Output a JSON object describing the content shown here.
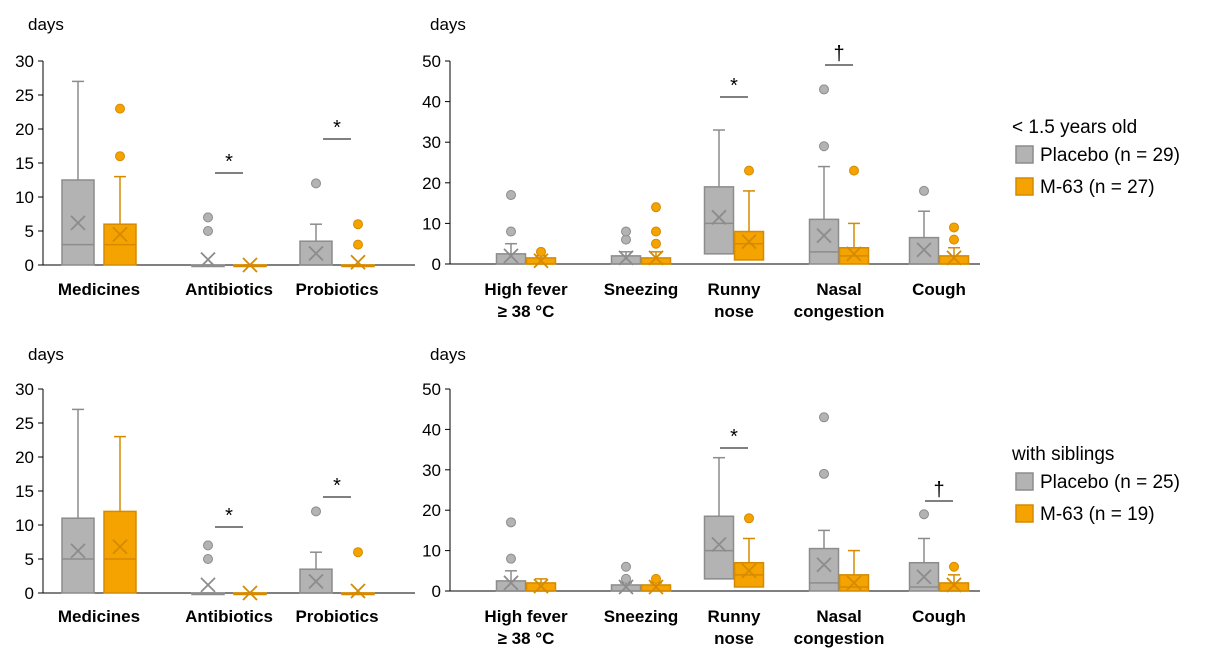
{
  "colors": {
    "placebo_fill": "#b3b3b3",
    "placebo_edge": "#8c8c8c",
    "m63_fill": "#f5a300",
    "m63_edge": "#d58a00",
    "axis": "#000000"
  },
  "legends": [
    {
      "title": "< 1.5 years old",
      "items": [
        "Placebo (n = 29)",
        "M-63 (n = 27)"
      ]
    },
    {
      "title": "with siblings",
      "items": [
        "Placebo (n = 25)",
        "M-63 (n = 19)"
      ]
    }
  ],
  "chart_data": [
    {
      "type": "box",
      "panel": "top-left",
      "ylabel": "days",
      "ylim": [
        0,
        30
      ],
      "yticks": [
        0,
        5,
        10,
        15,
        20,
        25,
        30
      ],
      "series_names": [
        "Placebo (n = 29)",
        "M-63 (n = 27)"
      ],
      "categories": [
        {
          "label": [
            "Medicines"
          ],
          "sig": "",
          "placebo": {
            "min": 0,
            "q1": 0,
            "median": 3,
            "q3": 12.5,
            "max": 27,
            "mean": 6.2,
            "outliers": []
          },
          "m63": {
            "min": 0,
            "q1": 0,
            "median": 3,
            "q3": 6,
            "max": 13,
            "mean": 4.5,
            "outliers": [
              16,
              23
            ]
          }
        },
        {
          "label": [
            "Antibiotics"
          ],
          "sig": "*",
          "placebo": {
            "min": 0,
            "q1": 0,
            "median": 0,
            "q3": 0,
            "max": 0,
            "mean": 0.8,
            "outliers": [
              5,
              7
            ]
          },
          "m63": {
            "min": 0,
            "q1": 0,
            "median": 0,
            "q3": 0,
            "max": 0,
            "mean": 0,
            "outliers": []
          }
        },
        {
          "label": [
            "Probiotics"
          ],
          "sig": "*",
          "placebo": {
            "min": 0,
            "q1": 0,
            "median": 0,
            "q3": 3.5,
            "max": 6,
            "mean": 1.7,
            "outliers": [
              12
            ]
          },
          "m63": {
            "min": 0,
            "q1": 0,
            "median": 0,
            "q3": 0,
            "max": 0,
            "mean": 0.4,
            "outliers": [
              3,
              6
            ]
          }
        }
      ]
    },
    {
      "type": "box",
      "panel": "top-right",
      "ylabel": "days",
      "ylim": [
        0,
        50
      ],
      "yticks": [
        0,
        10,
        20,
        30,
        40,
        50
      ],
      "series_names": [
        "Placebo (n = 29)",
        "M-63 (n = 27)"
      ],
      "categories": [
        {
          "label": [
            "High fever",
            "≥ 38 °C"
          ],
          "sig": "",
          "placebo": {
            "min": 0,
            "q1": 0,
            "median": 0,
            "q3": 2.5,
            "max": 5,
            "mean": 2,
            "outliers": [
              8,
              17
            ]
          },
          "m63": {
            "min": 0,
            "q1": 0,
            "median": 0,
            "q3": 1.5,
            "max": 2,
            "mean": 0.8,
            "outliers": [
              3
            ]
          }
        },
        {
          "label": [
            "Sneezing"
          ],
          "sig": "",
          "placebo": {
            "min": 0,
            "q1": 0,
            "median": 0,
            "q3": 2,
            "max": 3,
            "mean": 1.5,
            "outliers": [
              6,
              8
            ]
          },
          "m63": {
            "min": 0,
            "q1": 0,
            "median": 0,
            "q3": 1.5,
            "max": 3,
            "mean": 1.5,
            "outliers": [
              5,
              8,
              14
            ]
          }
        },
        {
          "label": [
            "Runny",
            "nose"
          ],
          "sig": "*",
          "placebo": {
            "min": 0,
            "q1": 2.5,
            "median": 10,
            "q3": 19,
            "max": 33,
            "mean": 11.5,
            "outliers": []
          },
          "m63": {
            "min": 0,
            "q1": 1,
            "median": 5,
            "q3": 8,
            "max": 18,
            "mean": 5.5,
            "outliers": [
              23
            ]
          }
        },
        {
          "label": [
            "Nasal",
            "congestion"
          ],
          "sig": "†",
          "placebo": {
            "min": 0,
            "q1": 0,
            "median": 3,
            "q3": 11,
            "max": 24,
            "mean": 7,
            "outliers": [
              29,
              43
            ]
          },
          "m63": {
            "min": 0,
            "q1": 0,
            "median": 2,
            "q3": 4,
            "max": 10,
            "mean": 2.5,
            "outliers": [
              23
            ]
          }
        },
        {
          "label": [
            "Cough"
          ],
          "sig": "",
          "placebo": {
            "min": 0,
            "q1": 0,
            "median": 0,
            "q3": 6.5,
            "max": 13,
            "mean": 3.5,
            "outliers": [
              18
            ]
          },
          "m63": {
            "min": 0,
            "q1": 0,
            "median": 0,
            "q3": 2,
            "max": 4,
            "mean": 1.5,
            "outliers": [
              6,
              9
            ]
          }
        }
      ]
    },
    {
      "type": "box",
      "panel": "bottom-left",
      "ylabel": "days",
      "ylim": [
        0,
        30
      ],
      "yticks": [
        0,
        5,
        10,
        15,
        20,
        25,
        30
      ],
      "series_names": [
        "Placebo (n = 25)",
        "M-63 (n = 19)"
      ],
      "categories": [
        {
          "label": [
            "Medicines"
          ],
          "sig": "",
          "placebo": {
            "min": 0,
            "q1": 0,
            "median": 5,
            "q3": 11,
            "max": 27,
            "mean": 6.2,
            "outliers": []
          },
          "m63": {
            "min": 0,
            "q1": 0,
            "median": 5,
            "q3": 12,
            "max": 23,
            "mean": 6.8,
            "outliers": []
          }
        },
        {
          "label": [
            "Antibiotics"
          ],
          "sig": "*",
          "placebo": {
            "min": 0,
            "q1": 0,
            "median": 0,
            "q3": 0,
            "max": 0,
            "mean": 1.2,
            "outliers": [
              5,
              7
            ]
          },
          "m63": {
            "min": 0,
            "q1": 0,
            "median": 0,
            "q3": 0,
            "max": 0,
            "mean": 0,
            "outliers": []
          }
        },
        {
          "label": [
            "Probiotics"
          ],
          "sig": "*",
          "placebo": {
            "min": 0,
            "q1": 0,
            "median": 0,
            "q3": 3.5,
            "max": 6,
            "mean": 1.7,
            "outliers": [
              12
            ]
          },
          "m63": {
            "min": 0,
            "q1": 0,
            "median": 0,
            "q3": 0,
            "max": 0,
            "mean": 0.3,
            "outliers": [
              6
            ]
          }
        }
      ]
    },
    {
      "type": "box",
      "panel": "bottom-right",
      "ylabel": "days",
      "ylim": [
        0,
        50
      ],
      "yticks": [
        0,
        10,
        20,
        30,
        40,
        50
      ],
      "series_names": [
        "Placebo (n = 25)",
        "M-63 (n = 19)"
      ],
      "categories": [
        {
          "label": [
            "High fever",
            "≥ 38 °C"
          ],
          "sig": "",
          "placebo": {
            "min": 0,
            "q1": 0,
            "median": 0,
            "q3": 2.5,
            "max": 5,
            "mean": 2,
            "outliers": [
              8,
              17
            ]
          },
          "m63": {
            "min": 0,
            "q1": 0,
            "median": 0,
            "q3": 2,
            "max": 3,
            "mean": 1.2,
            "outliers": []
          }
        },
        {
          "label": [
            "Sneezing"
          ],
          "sig": "",
          "placebo": {
            "min": 0,
            "q1": 0,
            "median": 0,
            "q3": 1.5,
            "max": 2,
            "mean": 1,
            "outliers": [
              3,
              6
            ]
          },
          "m63": {
            "min": 0,
            "q1": 0,
            "median": 0,
            "q3": 1.5,
            "max": 2,
            "mean": 1,
            "outliers": [
              3
            ]
          }
        },
        {
          "label": [
            "Runny",
            "nose"
          ],
          "sig": "*",
          "placebo": {
            "min": 0,
            "q1": 3,
            "median": 10,
            "q3": 18.5,
            "max": 33,
            "mean": 11.5,
            "outliers": []
          },
          "m63": {
            "min": 0,
            "q1": 1,
            "median": 4,
            "q3": 7,
            "max": 13,
            "mean": 5,
            "outliers": [
              18
            ]
          }
        },
        {
          "label": [
            "Nasal",
            "congestion"
          ],
          "sig": "",
          "placebo": {
            "min": 0,
            "q1": 0,
            "median": 2,
            "q3": 10.5,
            "max": 15,
            "mean": 6.5,
            "outliers": [
              29,
              43
            ]
          },
          "m63": {
            "min": 0,
            "q1": 0,
            "median": 1,
            "q3": 4,
            "max": 10,
            "mean": 2,
            "outliers": []
          }
        },
        {
          "label": [
            "Cough"
          ],
          "sig": "†",
          "placebo": {
            "min": 0,
            "q1": 0,
            "median": 1,
            "q3": 7,
            "max": 13,
            "mean": 3.5,
            "outliers": [
              19
            ]
          },
          "m63": {
            "min": 0,
            "q1": 0,
            "median": 0,
            "q3": 2,
            "max": 4,
            "mean": 1.5,
            "outliers": [
              6
            ]
          }
        }
      ]
    }
  ]
}
